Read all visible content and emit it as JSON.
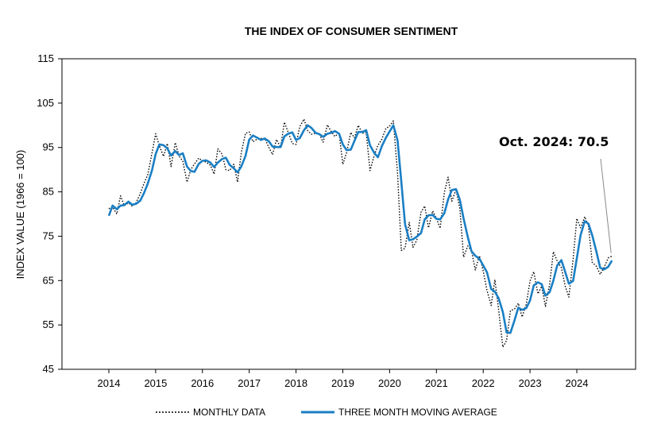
{
  "chart_data": {
    "type": "line",
    "title": "THE INDEX OF CONSUMER SENTIMENT",
    "ylabel": "INDEX VALUE (1966 = 100)",
    "xlabel": "",
    "ylim": [
      45,
      115
    ],
    "xlim": [
      2013.0,
      2025.3
    ],
    "y_ticks": [
      45,
      55,
      65,
      75,
      85,
      95,
      105,
      115
    ],
    "x_ticks": [
      2014,
      2015,
      2016,
      2017,
      2018,
      2019,
      2020,
      2021,
      2022,
      2023,
      2024
    ],
    "grid": false,
    "legend_position": "bottom-center",
    "colors": {
      "monthly": "#000000",
      "moving_average": "#1a7fc4"
    },
    "series": [
      {
        "name": "MONTHLY DATA",
        "style": "dotted",
        "points": [
          [
            2014.0,
            81.2
          ],
          [
            2014.08,
            81.6
          ],
          [
            2014.17,
            80.0
          ],
          [
            2014.25,
            84.1
          ],
          [
            2014.33,
            81.9
          ],
          [
            2014.42,
            82.5
          ],
          [
            2014.5,
            81.8
          ],
          [
            2014.58,
            82.5
          ],
          [
            2014.67,
            84.6
          ],
          [
            2014.75,
            86.9
          ],
          [
            2014.83,
            88.8
          ],
          [
            2014.92,
            93.6
          ],
          [
            2015.0,
            98.1
          ],
          [
            2015.08,
            95.4
          ],
          [
            2015.17,
            93.0
          ],
          [
            2015.25,
            95.9
          ],
          [
            2015.33,
            90.7
          ],
          [
            2015.42,
            96.1
          ],
          [
            2015.5,
            93.1
          ],
          [
            2015.58,
            91.9
          ],
          [
            2015.67,
            87.2
          ],
          [
            2015.75,
            90.0
          ],
          [
            2015.83,
            91.3
          ],
          [
            2015.92,
            92.6
          ],
          [
            2016.0,
            92.0
          ],
          [
            2016.08,
            91.7
          ],
          [
            2016.17,
            91.0
          ],
          [
            2016.25,
            89.0
          ],
          [
            2016.33,
            94.7
          ],
          [
            2016.42,
            93.5
          ],
          [
            2016.5,
            90.0
          ],
          [
            2016.58,
            89.8
          ],
          [
            2016.67,
            91.2
          ],
          [
            2016.75,
            87.2
          ],
          [
            2016.83,
            93.8
          ],
          [
            2016.92,
            98.2
          ],
          [
            2017.0,
            98.5
          ],
          [
            2017.08,
            96.3
          ],
          [
            2017.17,
            96.9
          ],
          [
            2017.25,
            97.0
          ],
          [
            2017.33,
            97.1
          ],
          [
            2017.42,
            95.0
          ],
          [
            2017.5,
            93.4
          ],
          [
            2017.58,
            96.8
          ],
          [
            2017.67,
            95.1
          ],
          [
            2017.75,
            100.7
          ],
          [
            2017.83,
            98.5
          ],
          [
            2017.92,
            95.9
          ],
          [
            2018.0,
            95.7
          ],
          [
            2018.08,
            99.7
          ],
          [
            2018.17,
            101.4
          ],
          [
            2018.25,
            98.8
          ],
          [
            2018.33,
            98.0
          ],
          [
            2018.42,
            98.2
          ],
          [
            2018.5,
            97.9
          ],
          [
            2018.58,
            96.2
          ],
          [
            2018.67,
            100.1
          ],
          [
            2018.75,
            98.6
          ],
          [
            2018.83,
            97.5
          ],
          [
            2018.92,
            98.3
          ],
          [
            2019.0,
            91.2
          ],
          [
            2019.08,
            93.8
          ],
          [
            2019.17,
            98.4
          ],
          [
            2019.25,
            97.2
          ],
          [
            2019.33,
            100.0
          ],
          [
            2019.42,
            98.2
          ],
          [
            2019.5,
            98.4
          ],
          [
            2019.58,
            89.8
          ],
          [
            2019.67,
            93.2
          ],
          [
            2019.75,
            95.5
          ],
          [
            2019.83,
            96.8
          ],
          [
            2019.92,
            99.3
          ],
          [
            2020.0,
            99.8
          ],
          [
            2020.08,
            101.0
          ],
          [
            2020.17,
            89.1
          ],
          [
            2020.25,
            71.8
          ],
          [
            2020.33,
            72.3
          ],
          [
            2020.42,
            78.1
          ],
          [
            2020.5,
            72.5
          ],
          [
            2020.58,
            74.1
          ],
          [
            2020.67,
            80.4
          ],
          [
            2020.75,
            81.8
          ],
          [
            2020.83,
            76.9
          ],
          [
            2020.92,
            80.7
          ],
          [
            2021.0,
            79.0
          ],
          [
            2021.08,
            76.8
          ],
          [
            2021.17,
            84.9
          ],
          [
            2021.25,
            88.3
          ],
          [
            2021.33,
            82.9
          ],
          [
            2021.42,
            85.5
          ],
          [
            2021.5,
            81.2
          ],
          [
            2021.58,
            70.3
          ],
          [
            2021.67,
            72.8
          ],
          [
            2021.75,
            71.7
          ],
          [
            2021.83,
            67.4
          ],
          [
            2021.92,
            70.6
          ],
          [
            2022.0,
            67.2
          ],
          [
            2022.08,
            62.8
          ],
          [
            2022.17,
            59.4
          ],
          [
            2022.25,
            65.2
          ],
          [
            2022.33,
            58.4
          ],
          [
            2022.42,
            50.0
          ],
          [
            2022.5,
            51.5
          ],
          [
            2022.58,
            58.2
          ],
          [
            2022.67,
            58.6
          ],
          [
            2022.75,
            59.9
          ],
          [
            2022.83,
            56.8
          ],
          [
            2022.92,
            59.7
          ],
          [
            2023.0,
            64.9
          ],
          [
            2023.08,
            67.0
          ],
          [
            2023.17,
            62.0
          ],
          [
            2023.25,
            63.7
          ],
          [
            2023.33,
            59.2
          ],
          [
            2023.42,
            64.2
          ],
          [
            2023.5,
            71.5
          ],
          [
            2023.58,
            69.4
          ],
          [
            2023.67,
            67.9
          ],
          [
            2023.75,
            63.8
          ],
          [
            2023.83,
            61.3
          ],
          [
            2023.92,
            69.7
          ],
          [
            2024.0,
            79.0
          ],
          [
            2024.08,
            76.9
          ],
          [
            2024.17,
            79.4
          ],
          [
            2024.25,
            77.2
          ],
          [
            2024.33,
            69.1
          ],
          [
            2024.42,
            68.2
          ],
          [
            2024.5,
            66.4
          ],
          [
            2024.58,
            67.9
          ],
          [
            2024.67,
            70.1
          ],
          [
            2024.75,
            70.5
          ]
        ]
      },
      {
        "name": "THREE MONTH MOVING AVERAGE",
        "style": "solid",
        "points": [
          [
            2014.0,
            79.6
          ],
          [
            2014.08,
            81.9
          ],
          [
            2014.17,
            81.1
          ],
          [
            2014.25,
            81.9
          ],
          [
            2014.33,
            82.0
          ],
          [
            2014.42,
            82.8
          ],
          [
            2014.5,
            82.1
          ],
          [
            2014.58,
            82.3
          ],
          [
            2014.67,
            83.0
          ],
          [
            2014.75,
            84.7
          ],
          [
            2014.83,
            86.8
          ],
          [
            2014.92,
            89.8
          ],
          [
            2015.0,
            93.5
          ],
          [
            2015.08,
            95.7
          ],
          [
            2015.17,
            95.5
          ],
          [
            2015.25,
            94.8
          ],
          [
            2015.33,
            93.2
          ],
          [
            2015.42,
            94.2
          ],
          [
            2015.5,
            93.3
          ],
          [
            2015.58,
            93.7
          ],
          [
            2015.67,
            90.7
          ],
          [
            2015.75,
            89.7
          ],
          [
            2015.83,
            89.5
          ],
          [
            2015.92,
            91.3
          ],
          [
            2016.0,
            92.0
          ],
          [
            2016.08,
            92.1
          ],
          [
            2016.17,
            91.6
          ],
          [
            2016.25,
            90.6
          ],
          [
            2016.33,
            91.6
          ],
          [
            2016.42,
            92.4
          ],
          [
            2016.5,
            92.7
          ],
          [
            2016.58,
            91.1
          ],
          [
            2016.67,
            90.3
          ],
          [
            2016.75,
            89.4
          ],
          [
            2016.83,
            90.7
          ],
          [
            2016.92,
            93.1
          ],
          [
            2017.0,
            96.8
          ],
          [
            2017.08,
            97.7
          ],
          [
            2017.17,
            97.2
          ],
          [
            2017.25,
            96.7
          ],
          [
            2017.33,
            97.0
          ],
          [
            2017.42,
            96.4
          ],
          [
            2017.5,
            95.2
          ],
          [
            2017.58,
            95.1
          ],
          [
            2017.67,
            95.1
          ],
          [
            2017.75,
            97.5
          ],
          [
            2017.83,
            98.1
          ],
          [
            2017.92,
            98.4
          ],
          [
            2018.0,
            96.7
          ],
          [
            2018.08,
            97.1
          ],
          [
            2018.17,
            98.9
          ],
          [
            2018.25,
            100.0
          ],
          [
            2018.33,
            99.4
          ],
          [
            2018.42,
            98.3
          ],
          [
            2018.5,
            98.0
          ],
          [
            2018.58,
            97.4
          ],
          [
            2018.67,
            98.1
          ],
          [
            2018.75,
            98.3
          ],
          [
            2018.83,
            98.7
          ],
          [
            2018.92,
            98.1
          ],
          [
            2019.0,
            95.7
          ],
          [
            2019.08,
            94.4
          ],
          [
            2019.17,
            94.5
          ],
          [
            2019.25,
            96.5
          ],
          [
            2019.33,
            98.5
          ],
          [
            2019.42,
            98.5
          ],
          [
            2019.5,
            98.9
          ],
          [
            2019.58,
            95.5
          ],
          [
            2019.67,
            93.8
          ],
          [
            2019.75,
            92.8
          ],
          [
            2019.83,
            95.2
          ],
          [
            2019.92,
            97.2
          ],
          [
            2020.0,
            98.6
          ],
          [
            2020.08,
            100.0
          ],
          [
            2020.17,
            96.6
          ],
          [
            2020.25,
            87.3
          ],
          [
            2020.33,
            77.7
          ],
          [
            2020.42,
            74.1
          ],
          [
            2020.5,
            74.3
          ],
          [
            2020.58,
            74.9
          ],
          [
            2020.67,
            75.7
          ],
          [
            2020.75,
            78.8
          ],
          [
            2020.83,
            79.7
          ],
          [
            2020.92,
            79.8
          ],
          [
            2021.0,
            78.9
          ],
          [
            2021.08,
            78.8
          ],
          [
            2021.17,
            80.2
          ],
          [
            2021.25,
            83.3
          ],
          [
            2021.33,
            85.4
          ],
          [
            2021.42,
            85.6
          ],
          [
            2021.5,
            83.2
          ],
          [
            2021.58,
            79.0
          ],
          [
            2021.67,
            74.8
          ],
          [
            2021.75,
            71.6
          ],
          [
            2021.83,
            70.6
          ],
          [
            2021.92,
            69.9
          ],
          [
            2022.0,
            68.4
          ],
          [
            2022.08,
            66.9
          ],
          [
            2022.17,
            63.1
          ],
          [
            2022.25,
            62.5
          ],
          [
            2022.33,
            61.0
          ],
          [
            2022.42,
            57.9
          ],
          [
            2022.5,
            53.3
          ],
          [
            2022.58,
            53.2
          ],
          [
            2022.67,
            56.1
          ],
          [
            2022.75,
            58.9
          ],
          [
            2022.83,
            58.4
          ],
          [
            2022.92,
            58.8
          ],
          [
            2023.0,
            60.5
          ],
          [
            2023.08,
            63.9
          ],
          [
            2023.17,
            64.6
          ],
          [
            2023.25,
            64.2
          ],
          [
            2023.33,
            61.6
          ],
          [
            2023.42,
            62.4
          ],
          [
            2023.5,
            65.0
          ],
          [
            2023.58,
            68.4
          ],
          [
            2023.67,
            69.6
          ],
          [
            2023.75,
            67.0
          ],
          [
            2023.83,
            64.3
          ],
          [
            2023.92,
            64.9
          ],
          [
            2024.0,
            70.0
          ],
          [
            2024.08,
            75.2
          ],
          [
            2024.17,
            78.4
          ],
          [
            2024.25,
            77.8
          ],
          [
            2024.33,
            75.2
          ],
          [
            2024.42,
            71.5
          ],
          [
            2024.5,
            67.9
          ],
          [
            2024.58,
            67.5
          ],
          [
            2024.67,
            68.1
          ],
          [
            2024.75,
            69.5
          ]
        ]
      }
    ],
    "annotations": [
      {
        "text": "Oct. 2024: 70.5",
        "x": 2024.75,
        "y": 70.5
      }
    ]
  }
}
